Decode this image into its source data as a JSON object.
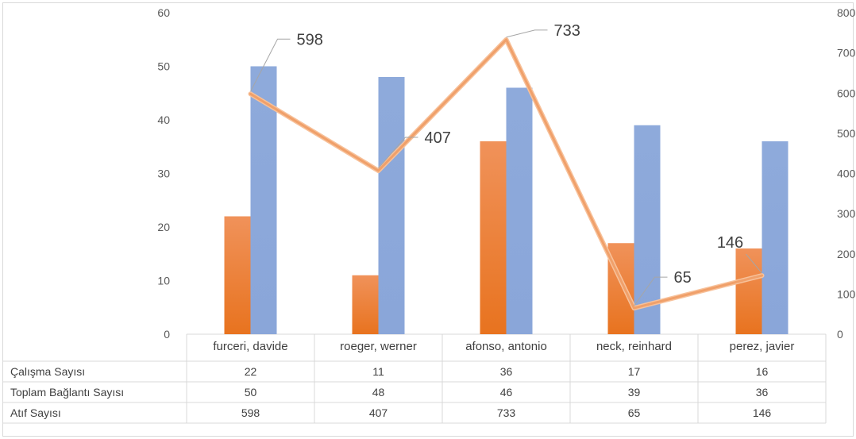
{
  "chart_data": {
    "type": "bar",
    "categories": [
      "furceri, davide",
      "roeger, werner",
      "afonso, antonio",
      "neck, reinhard",
      "perez, javier"
    ],
    "series": [
      {
        "name": "Çalışma Sayısı",
        "type": "bar",
        "axis": "left",
        "color": "#ed7d31",
        "values": [
          22,
          11,
          36,
          17,
          16
        ]
      },
      {
        "name": "Toplam Bağlantı Sayısı",
        "type": "bar",
        "axis": "left",
        "color": "#8faadc",
        "values": [
          50,
          48,
          46,
          39,
          36
        ]
      },
      {
        "name": "Atıf Sayısı",
        "type": "line",
        "axis": "right",
        "color": "#f4b183",
        "values": [
          598,
          407,
          733,
          65,
          146
        ]
      }
    ],
    "y_left": {
      "min": 0,
      "max": 60,
      "ticks": [
        "0",
        "10",
        "20",
        "30",
        "40",
        "50",
        "60"
      ]
    },
    "y_right": {
      "min": 0,
      "max": 800,
      "ticks": [
        "0",
        "100",
        "200",
        "300",
        "400",
        "500",
        "600",
        "700",
        "800"
      ]
    },
    "data_labels": [
      "598",
      "407",
      "733",
      "65",
      "146"
    ],
    "data_table": {
      "rows": [
        {
          "label": "Çalışma Sayısı",
          "cells": [
            "22",
            "11",
            "36",
            "17",
            "16"
          ]
        },
        {
          "label": "Toplam Bağlantı Sayısı",
          "cells": [
            "50",
            "48",
            "46",
            "39",
            "36"
          ]
        },
        {
          "label": "Atıf Sayısı",
          "cells": [
            "598",
            "407",
            "733",
            "65",
            "146"
          ]
        }
      ]
    },
    "grid": false,
    "legend": "none"
  }
}
